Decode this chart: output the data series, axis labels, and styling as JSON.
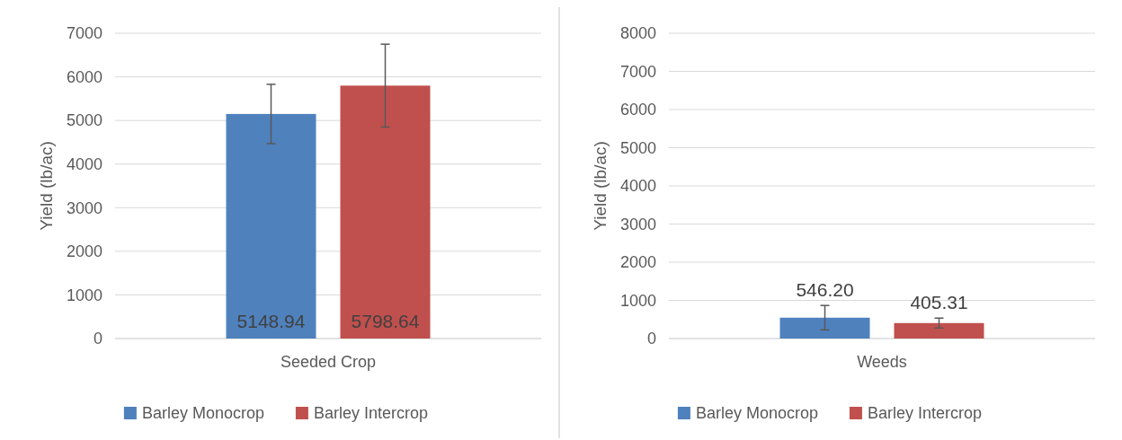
{
  "chart_data": [
    {
      "type": "bar",
      "categories": [
        "Seeded Crop"
      ],
      "ylabel": "Yield (lb/ac)",
      "ylim": [
        0,
        7000
      ],
      "yticks": [
        0,
        1000,
        2000,
        3000,
        4000,
        5000,
        6000,
        7000
      ],
      "grid": "y",
      "legend": "bottom",
      "data_labels": true,
      "series": [
        {
          "name": "Barley Monocrop",
          "color": "#4f81bd",
          "values": [
            5148.94
          ],
          "errors": [
            680
          ]
        },
        {
          "name": "Barley Intercrop",
          "color": "#c0504d",
          "values": [
            5798.64
          ],
          "errors": [
            950
          ]
        }
      ]
    },
    {
      "type": "bar",
      "categories": [
        "Weeds"
      ],
      "ylabel": "Yield (lb/ac)",
      "ylim": [
        0,
        8000
      ],
      "yticks": [
        0,
        1000,
        2000,
        3000,
        4000,
        5000,
        6000,
        7000,
        8000
      ],
      "grid": "y",
      "legend": "bottom",
      "series": [
        {
          "name": "Barley Monocrop",
          "color": "#4f81bd",
          "values": [
            546.2
          ],
          "value_labels": [
            "546.20"
          ],
          "errors": [
            320
          ]
        },
        {
          "name": "Barley Intercrop",
          "color": "#c0504d",
          "values": [
            405.31
          ],
          "value_labels": [
            "405.31"
          ],
          "errors": [
            130
          ]
        }
      ]
    }
  ]
}
